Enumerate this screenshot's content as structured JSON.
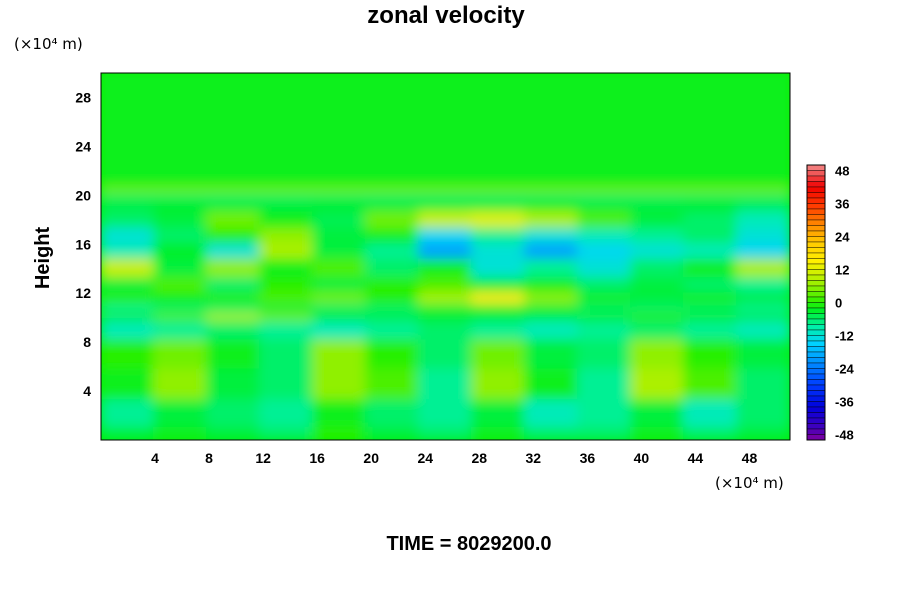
{
  "chart_data": {
    "type": "heatmap",
    "title": "zonal velocity",
    "xlabel": "",
    "ylabel": "Height",
    "x_unit": "(×10⁴ m)",
    "y_unit": "(×10⁴ m)",
    "xlim": [
      0,
      51
    ],
    "ylim": [
      0,
      30
    ],
    "x_ticks": [
      "4",
      "8",
      "12",
      "16",
      "20",
      "24",
      "28",
      "32",
      "36",
      "40",
      "44",
      "48"
    ],
    "y_ticks": [
      "4",
      "8",
      "12",
      "16",
      "20",
      "24",
      "28"
    ],
    "x_tick_values": [
      4,
      8,
      12,
      16,
      20,
      24,
      28,
      32,
      36,
      40,
      44,
      48
    ],
    "y_tick_values": [
      4,
      8,
      12,
      16,
      20,
      24,
      28
    ],
    "colorbar": {
      "range": [
        -50,
        50
      ],
      "ticks": [
        "48",
        "36",
        "24",
        "12",
        "0",
        "-12",
        "-24",
        "-36",
        "-48"
      ],
      "tick_values": [
        48,
        36,
        24,
        12,
        0,
        -12,
        -24,
        -36,
        -48
      ]
    },
    "rows": [
      {
        "y": 30,
        "values": [
          -2,
          -2,
          -2,
          -2,
          -2,
          -2,
          -2,
          -2,
          -2,
          -2,
          -2,
          -2,
          -2
        ]
      },
      {
        "y": 24,
        "values": [
          -2,
          -2,
          -2,
          -2,
          -2,
          -2,
          -2,
          -2,
          -2,
          -2,
          -2,
          -2,
          -2
        ]
      },
      {
        "y": 21,
        "values": [
          -2,
          -2,
          -2,
          -2,
          -2,
          -2,
          -2,
          -2,
          -2,
          -2,
          -2,
          -2,
          -2
        ]
      },
      {
        "y": 20.3,
        "values": [
          4,
          4,
          4,
          4,
          4,
          4,
          4,
          4,
          4,
          4,
          4,
          4,
          4
        ]
      },
      {
        "y": 19.8,
        "values": [
          -6,
          -6,
          -6,
          -6,
          -6,
          -6,
          -6,
          -6,
          -6,
          -6,
          -6,
          -6,
          -6
        ]
      },
      {
        "y": 19.2,
        "values": [
          -4,
          -3,
          -4,
          -4,
          -3,
          -4,
          -4,
          -4,
          -3,
          -4,
          -4,
          -3,
          -5
        ]
      },
      {
        "y": 18,
        "values": [
          -6,
          -4,
          4,
          -2,
          -5,
          4,
          10,
          12,
          8,
          2,
          -4,
          -6,
          -10
        ]
      },
      {
        "y": 16.5,
        "values": [
          -12,
          -6,
          0,
          6,
          -4,
          -2,
          -14,
          -8,
          -12,
          -10,
          -8,
          -6,
          -12
        ]
      },
      {
        "y": 15.5,
        "values": [
          -10,
          -3,
          -12,
          8,
          -4,
          -8,
          -20,
          -12,
          -20,
          -14,
          -12,
          -10,
          -14
        ]
      },
      {
        "y": 14,
        "values": [
          10,
          -4,
          6,
          -2,
          2,
          -6,
          -2,
          -12,
          -8,
          -12,
          -6,
          -2,
          8
        ]
      },
      {
        "y": 12.5,
        "values": [
          -4,
          2,
          -6,
          0,
          -4,
          0,
          2,
          -4,
          -2,
          -6,
          -4,
          -6,
          -8
        ]
      },
      {
        "y": 11.5,
        "values": [
          0,
          -2,
          0,
          2,
          4,
          0,
          8,
          16,
          6,
          -2,
          -4,
          -2,
          -4
        ]
      },
      {
        "y": 10.6,
        "values": [
          -8,
          -6,
          -6,
          -4,
          -6,
          -6,
          -4,
          -4,
          -4,
          -6,
          -6,
          -6,
          -8
        ]
      },
      {
        "y": 10,
        "values": [
          -2,
          2,
          8,
          4,
          -2,
          -4,
          -2,
          -2,
          -4,
          -2,
          0,
          -2,
          -4
        ]
      },
      {
        "y": 9.3,
        "values": [
          -10,
          -8,
          -6,
          -8,
          -10,
          -8,
          -6,
          -8,
          -10,
          -8,
          -6,
          -8,
          -10
        ]
      },
      {
        "y": 7,
        "values": [
          0,
          4,
          -2,
          -6,
          6,
          0,
          -6,
          4,
          -4,
          -6,
          6,
          0,
          -4
        ]
      },
      {
        "y": 4.5,
        "values": [
          -2,
          6,
          -4,
          -6,
          6,
          2,
          -8,
          6,
          -2,
          -8,
          8,
          2,
          -6
        ]
      },
      {
        "y": 2,
        "values": [
          -8,
          -4,
          -6,
          -8,
          -2,
          -6,
          -8,
          -4,
          -10,
          -8,
          -4,
          -10,
          -6
        ]
      },
      {
        "y": 0,
        "values": [
          -4,
          -2,
          -4,
          -6,
          0,
          -4,
          -6,
          -2,
          -6,
          -6,
          -2,
          -6,
          -4
        ]
      }
    ],
    "grid": false,
    "legend": "colorbar-right"
  },
  "footer": {
    "time_label": "TIME = 8029200.0"
  }
}
